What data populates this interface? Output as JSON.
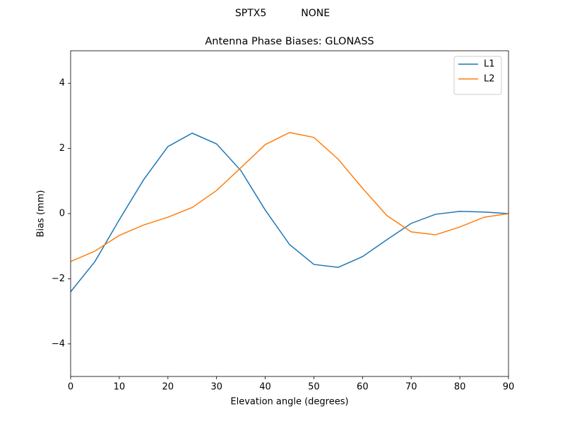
{
  "chart_data": {
    "type": "line",
    "suptitle": "SPTX5           NONE",
    "title": "Antenna Phase Biases: GLONASS",
    "x_label": "Elevation angle (degrees)",
    "y_label": "Bias (mm)",
    "x": [
      0,
      5,
      10,
      15,
      20,
      25,
      30,
      35,
      40,
      45,
      50,
      55,
      60,
      65,
      70,
      75,
      80,
      85,
      90
    ],
    "series": [
      {
        "name": "L1",
        "color": "#1f77b4",
        "values": [
          -2.4,
          -1.47,
          -0.19,
          1.04,
          2.06,
          2.47,
          2.14,
          1.32,
          0.11,
          -0.95,
          -1.56,
          -1.65,
          -1.32,
          -0.8,
          -0.3,
          -0.02,
          0.07,
          0.05,
          0
        ]
      },
      {
        "name": "L2",
        "color": "#ff7f0e",
        "values": [
          -1.47,
          -1.15,
          -0.67,
          -0.35,
          -0.11,
          0.19,
          0.71,
          1.41,
          2.12,
          2.49,
          2.34,
          1.67,
          0.78,
          -0.06,
          -0.56,
          -0.65,
          -0.41,
          -0.11,
          0
        ]
      }
    ],
    "xlim": [
      0,
      90
    ],
    "xticks": [
      0,
      10,
      20,
      30,
      40,
      50,
      60,
      70,
      80,
      90
    ],
    "ylim": [
      -5,
      5
    ],
    "yticks": [
      {
        "value": -4,
        "label": "−4"
      },
      {
        "value": -2,
        "label": "−2"
      },
      0,
      2,
      4
    ],
    "legend": "upper right"
  }
}
